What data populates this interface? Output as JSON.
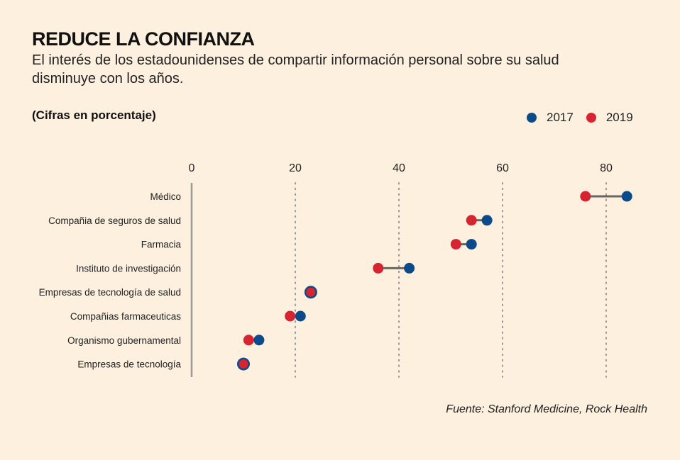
{
  "header": {
    "title": "REDUCE LA CONFIANZA",
    "subtitle": "El interés de los estadounidenses de compartir información personal sobre su salud disminuye con los años.",
    "unit_note": "(Cifras en porcentaje)"
  },
  "legend": [
    {
      "label": "2017",
      "color": "#0d4a8a"
    },
    {
      "label": "2019",
      "color": "#d62430"
    }
  ],
  "source": "Fuente: Stanford Medicine, Rock Health",
  "chart_data": {
    "type": "dumbbell",
    "title": "REDUCE LA CONFIANZA",
    "xlabel": "",
    "ylabel": "",
    "xlim": [
      0,
      80
    ],
    "xticks": [
      "0",
      "20",
      "40",
      "60",
      "80"
    ],
    "grid": "vertical dotted",
    "legend_position": "top-right",
    "categories": [
      "Médico",
      "Compañia de seguros de salud",
      "Farmacia",
      "Instituto de investigación",
      "Empresas de tecnología de salud",
      "Compañias farmaceuticas",
      "Organismo gubernamental",
      "Empresas de tecnología"
    ],
    "series": [
      {
        "name": "2017",
        "color": "#0d4a8a",
        "values": [
          84,
          57,
          54,
          42,
          23,
          21,
          13,
          10
        ]
      },
      {
        "name": "2019",
        "color": "#d62430",
        "values": [
          76,
          54,
          51,
          36,
          23,
          19,
          11,
          10
        ]
      }
    ]
  }
}
